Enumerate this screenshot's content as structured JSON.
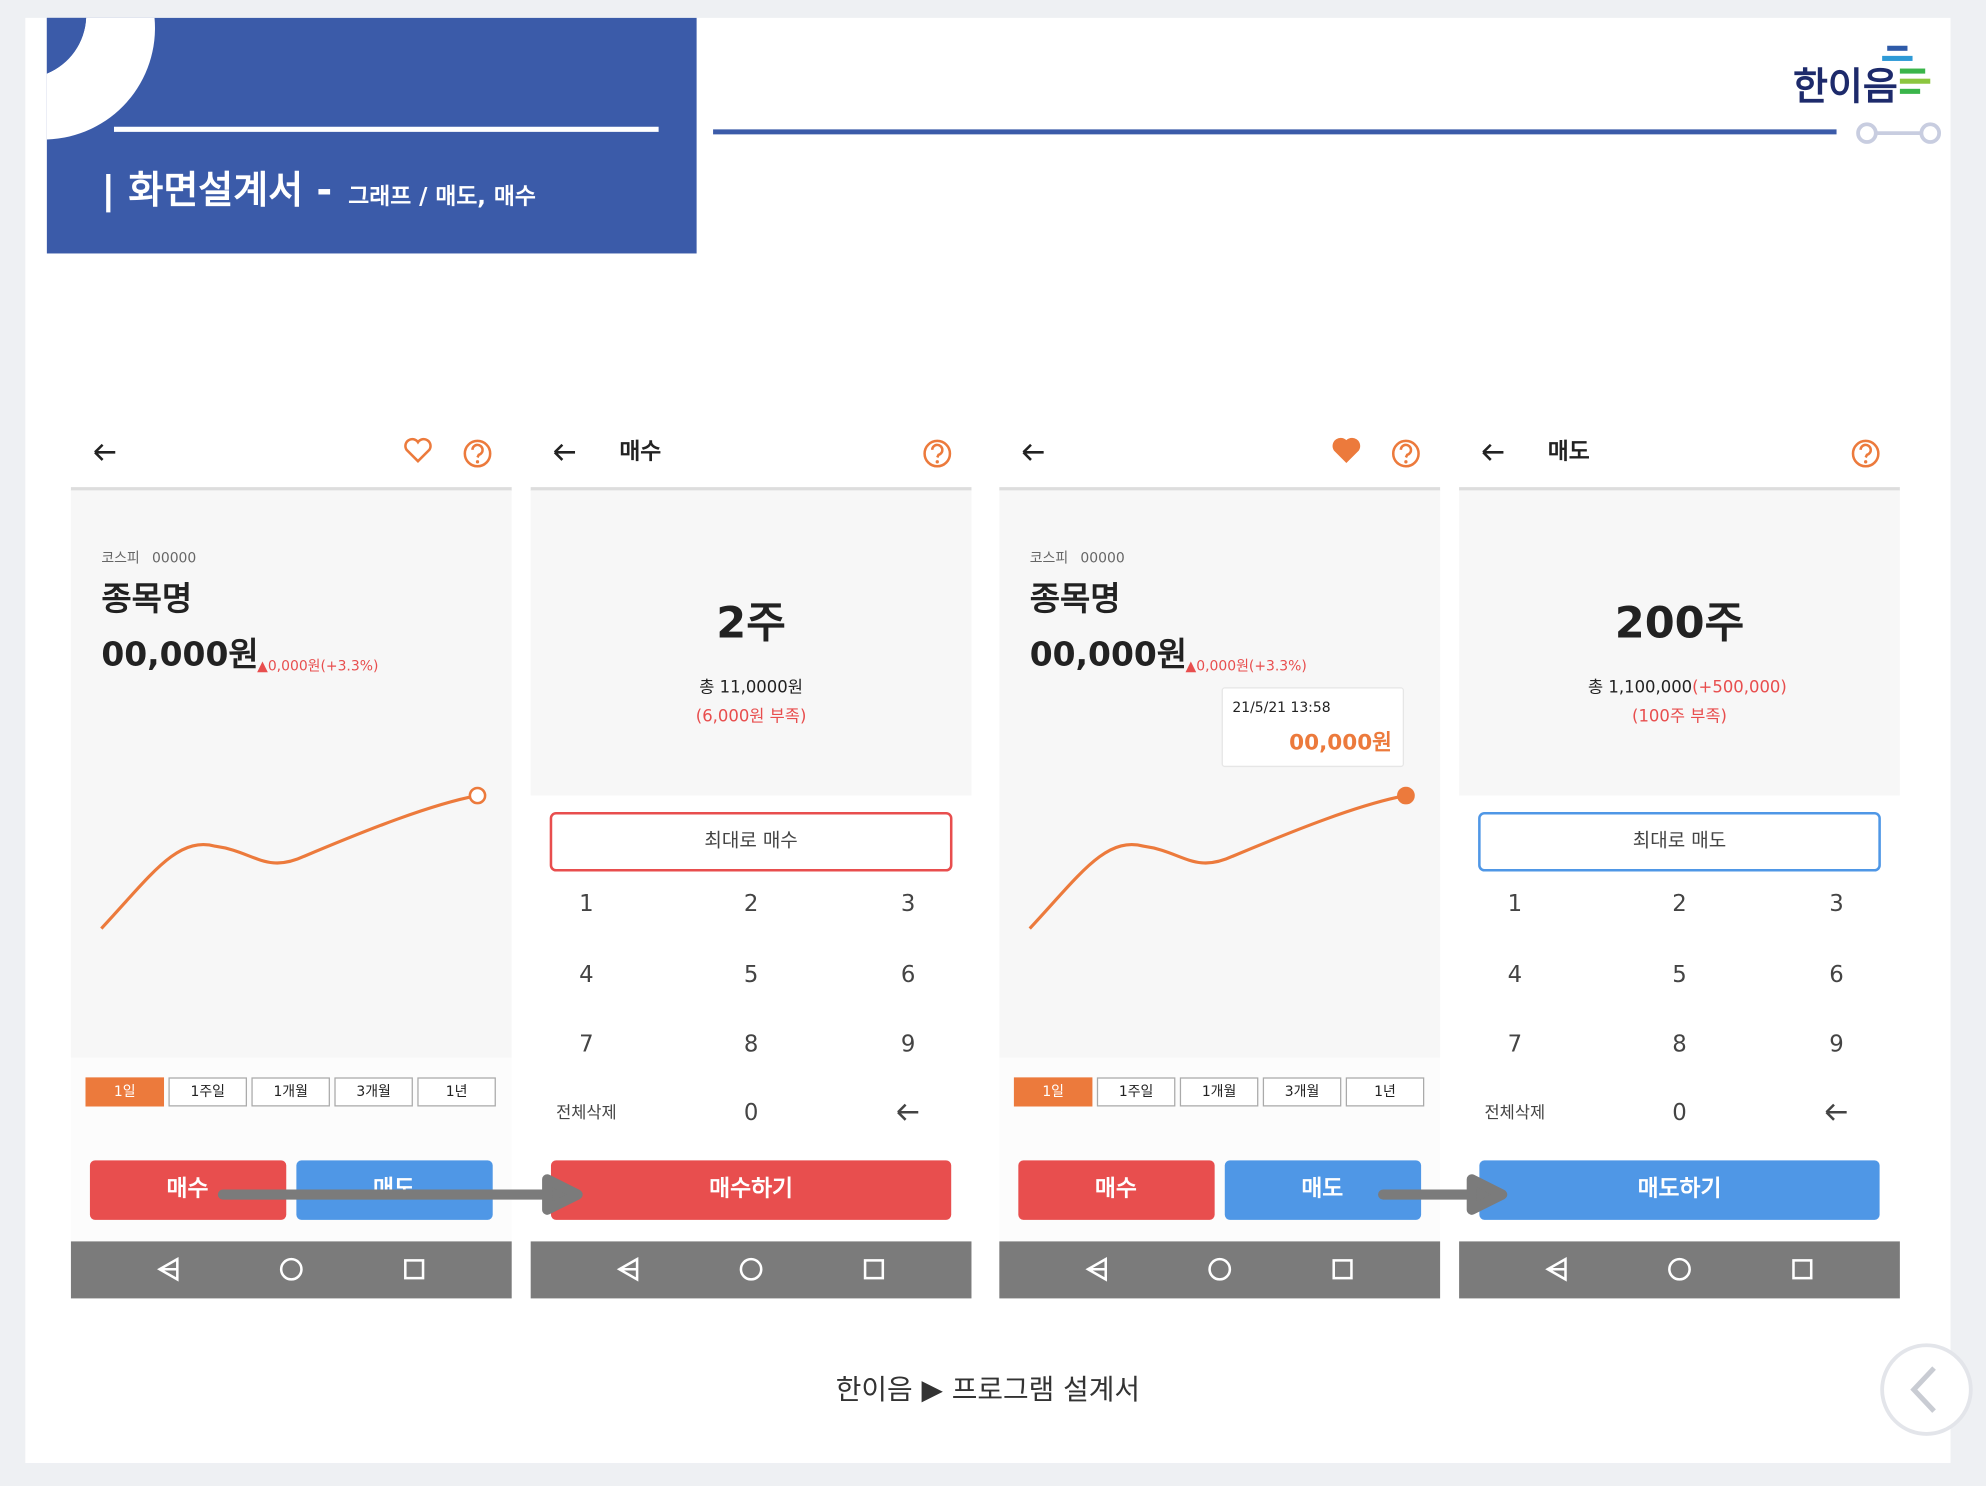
{
  "header": {
    "title": "| 화면설계서 -",
    "subtitle": "그래프 / 매도, 매수"
  },
  "brand": "한이음",
  "footer": "한이음 ▶ 프로그램 설계서",
  "screens": [
    {
      "market": "코스피",
      "code": "00000",
      "name": "종목명",
      "price": "00,000원",
      "change": "▲0,000원(+3.3%)",
      "periods": [
        "1일",
        "1주일",
        "1개월",
        "3개월",
        "1년"
      ],
      "buy": "매수",
      "sell": "매도"
    },
    {
      "title": "매수",
      "quantity": "2주",
      "total": "총 11,0000원",
      "note": "(6,000원 부족)",
      "max_button": "최대로 매수",
      "keypad": [
        "1",
        "2",
        "3",
        "4",
        "5",
        "6",
        "7",
        "8",
        "9",
        "전체삭제",
        "0"
      ],
      "action": "매수하기"
    },
    {
      "market": "코스피",
      "code": "00000",
      "name": "종목명",
      "price": "00,000원",
      "change": "▲0,000원(+3.3%)",
      "tooltip_time": "21/5/21  13:58",
      "tooltip_price": "00,000원",
      "periods": [
        "1일",
        "1주일",
        "1개월",
        "3개월",
        "1년"
      ],
      "buy": "매수",
      "sell": "매도"
    },
    {
      "title": "매도",
      "quantity": "200주",
      "total": "총 1,100,000",
      "total_delta": "(+500,000)",
      "note": "(100주 부족)",
      "max_button": "최대로 매도",
      "keypad": [
        "1",
        "2",
        "3",
        "4",
        "5",
        "6",
        "7",
        "8",
        "9",
        "전체삭제",
        "0"
      ],
      "action": "매도하기"
    }
  ]
}
